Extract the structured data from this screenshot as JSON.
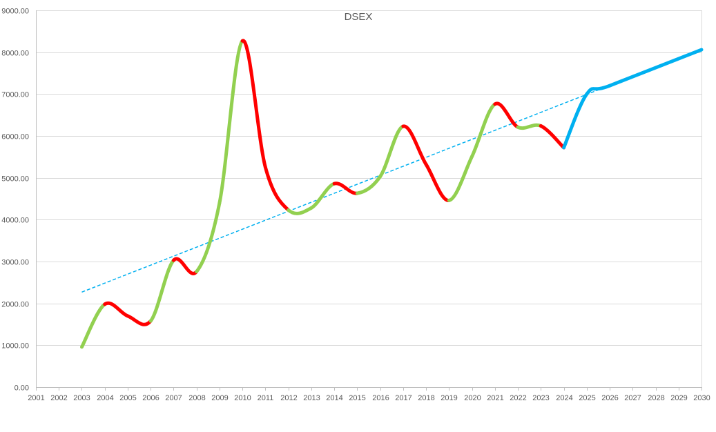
{
  "chart_data": {
    "type": "line",
    "title": "DSEX",
    "xlabel": "",
    "ylabel": "",
    "xlim": [
      2001,
      2030
    ],
    "ylim": [
      0,
      9000
    ],
    "grid": true,
    "legend": "none",
    "x_ticks": [
      "2001",
      "2002",
      "2003",
      "2004",
      "2005",
      "2006",
      "2007",
      "2008",
      "2009",
      "2010",
      "2011",
      "2012",
      "2013",
      "2014",
      "2015",
      "2016",
      "2017",
      "2018",
      "2019",
      "2020",
      "2021",
      "2022",
      "2023",
      "2024",
      "2025",
      "2026",
      "2027",
      "2028",
      "2029",
      "2030"
    ],
    "y_ticks": [
      "0.00",
      "1000.00",
      "2000.00",
      "3000.00",
      "4000.00",
      "5000.00",
      "6000.00",
      "7000.00",
      "8000.00",
      "9000.00"
    ],
    "colors": {
      "rise": "#92d050",
      "fall": "#ff0000",
      "forecast": "#00b0f0",
      "trend": "#00b0f0",
      "grid": "#d9d9d9"
    },
    "series": [
      {
        "style": "actual",
        "points": [
          {
            "x": 2003,
            "y": 960
          },
          {
            "x": 2004,
            "y": 1980
          },
          {
            "x": 2005,
            "y": 1700
          },
          {
            "x": 2006,
            "y": 1580
          },
          {
            "x": 2007,
            "y": 3030
          },
          {
            "x": 2008,
            "y": 2760
          },
          {
            "x": 2009,
            "y": 4400
          },
          {
            "x": 2010,
            "y": 8270
          },
          {
            "x": 2011,
            "y": 5250
          },
          {
            "x": 2012,
            "y": 4230
          },
          {
            "x": 2013,
            "y": 4280
          },
          {
            "x": 2014,
            "y": 4860
          },
          {
            "x": 2015,
            "y": 4630
          },
          {
            "x": 2016,
            "y": 5030
          },
          {
            "x": 2017,
            "y": 6230
          },
          {
            "x": 2018,
            "y": 5320
          },
          {
            "x": 2019,
            "y": 4460
          },
          {
            "x": 2020,
            "y": 5510
          },
          {
            "x": 2021,
            "y": 6760
          },
          {
            "x": 2022,
            "y": 6210
          },
          {
            "x": 2023,
            "y": 6240
          },
          {
            "x": 2024,
            "y": 5720
          }
        ]
      },
      {
        "style": "forecast",
        "points": [
          {
            "x": 2024,
            "y": 5720
          },
          {
            "x": 2025,
            "y": 7000
          },
          {
            "x": 2026,
            "y": 7200
          },
          {
            "x": 2030,
            "y": 8060
          }
        ]
      },
      {
        "style": "trendline",
        "points": [
          {
            "x": 2003,
            "y": 2270
          },
          {
            "x": 2025.5,
            "y": 7100
          }
        ]
      }
    ]
  }
}
